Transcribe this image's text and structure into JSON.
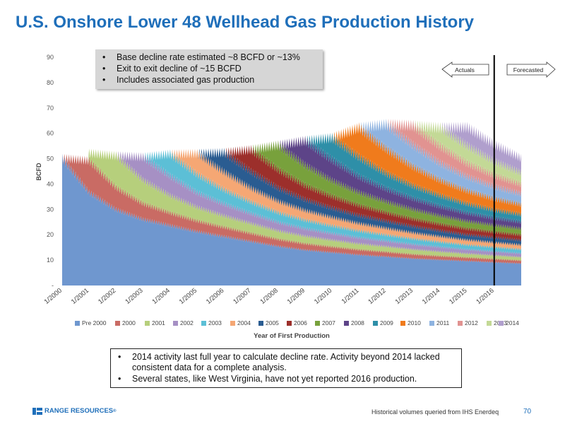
{
  "slide": {
    "title": "U.S. Onshore Lower 48 Wellhead Gas Production History",
    "bullets_top": [
      "Base decline rate estimated ~8 BCFD or ~13%",
      "Exit to exit decline of ~15 BCFD",
      "Includes associated gas production"
    ],
    "bullets_bottom": [
      "2014 activity last full year to calculate decline rate. Activity beyond 2014 lacked consistent data for a complete analysis.",
      "Several states, like West Virginia, have not yet reported 2016 production."
    ],
    "footer_note": "Historical volumes queried from IHS Enerdeq",
    "page_number": "70",
    "logo_text": "RANGE RESOURCES"
  },
  "chart_data": {
    "type": "area",
    "stacked": true,
    "title": "",
    "xlabel": "Year of First Production",
    "ylabel": "BCFD",
    "ylim": [
      0,
      90
    ],
    "yticks": [
      "-",
      "10",
      "20",
      "30",
      "40",
      "50",
      "60",
      "70",
      "80",
      "90"
    ],
    "x_tick_labels": [
      "1/2000",
      "1/2001",
      "1/2002",
      "1/2003",
      "1/2004",
      "1/2005",
      "1/2006",
      "1/2007",
      "1/2008",
      "1/2009",
      "1/2010",
      "1/2011",
      "1/2012",
      "1/2013",
      "1/2014",
      "1/2015",
      "1/2016"
    ],
    "x_start": 2000.0,
    "x_end": 2017.0,
    "actuals_end": 2016.0,
    "annotations": {
      "left_arrow": "Actuals",
      "right_arrow": "Forecasted"
    },
    "grid": false,
    "legend_position": "bottom",
    "series": [
      {
        "name": "Pre 2000",
        "color": "#6f97cf",
        "start": 2000.0,
        "values": [
          [
            2000.0,
            52
          ],
          [
            2001.0,
            38
          ],
          [
            2002.0,
            31
          ],
          [
            2003.0,
            27
          ],
          [
            2004.0,
            24.5
          ],
          [
            2005.0,
            22
          ],
          [
            2006.0,
            20
          ],
          [
            2007.0,
            18
          ],
          [
            2008.0,
            16
          ],
          [
            2009.0,
            14.5
          ],
          [
            2010.0,
            13.5
          ],
          [
            2011.0,
            12.5
          ],
          [
            2012.0,
            11.8
          ],
          [
            2013.0,
            11
          ],
          [
            2014.0,
            10.5
          ],
          [
            2015.0,
            10
          ],
          [
            2016.0,
            9.5
          ],
          [
            2017.0,
            9
          ]
        ]
      },
      {
        "name": "2000",
        "color": "#c96b64",
        "start": 2000.0,
        "values": [
          [
            2000.0,
            0
          ],
          [
            2001.0,
            13
          ],
          [
            2002.0,
            9
          ],
          [
            2003.0,
            6.5
          ],
          [
            2004.0,
            5.2
          ],
          [
            2005.0,
            4.4
          ],
          [
            2006.0,
            3.8
          ],
          [
            2007.0,
            3.3
          ],
          [
            2008.0,
            2.9
          ],
          [
            2009.0,
            2.6
          ],
          [
            2010.0,
            2.3
          ],
          [
            2011.0,
            2.1
          ],
          [
            2012.0,
            1.9
          ],
          [
            2013.0,
            1.7
          ],
          [
            2014.0,
            1.5
          ],
          [
            2015.0,
            1.4
          ],
          [
            2016.0,
            1.3
          ],
          [
            2017.0,
            1.2
          ]
        ]
      },
      {
        "name": "2001",
        "color": "#b6cf7c",
        "start": 2001.0,
        "values": [
          [
            2001.0,
            3
          ],
          [
            2002.0,
            13
          ],
          [
            2003.0,
            9.5
          ],
          [
            2004.0,
            7
          ],
          [
            2005.0,
            5.5
          ],
          [
            2006.0,
            4.6
          ],
          [
            2007.0,
            4
          ],
          [
            2008.0,
            3.4
          ],
          [
            2009.0,
            3
          ],
          [
            2010.0,
            2.7
          ],
          [
            2011.0,
            2.4
          ],
          [
            2012.0,
            2.2
          ],
          [
            2013.0,
            2
          ],
          [
            2014.0,
            1.8
          ],
          [
            2015.0,
            1.6
          ],
          [
            2016.0,
            1.5
          ],
          [
            2017.0,
            1.4
          ]
        ]
      },
      {
        "name": "2002",
        "color": "#a690c4",
        "start": 2002.0,
        "values": [
          [
            2002.0,
            0
          ],
          [
            2003.0,
            9.5
          ],
          [
            2004.0,
            8
          ],
          [
            2005.0,
            6
          ],
          [
            2006.0,
            4.9
          ],
          [
            2007.0,
            4.1
          ],
          [
            2008.0,
            3.5
          ],
          [
            2009.0,
            3.1
          ],
          [
            2010.0,
            2.8
          ],
          [
            2011.0,
            2.5
          ],
          [
            2012.0,
            2.3
          ],
          [
            2013.0,
            2.1
          ],
          [
            2014.0,
            1.9
          ],
          [
            2015.0,
            1.7
          ],
          [
            2016.0,
            1.6
          ],
          [
            2017.0,
            1.5
          ]
        ]
      },
      {
        "name": "2003",
        "color": "#5cbfd6",
        "start": 2003.0,
        "values": [
          [
            2003.0,
            0
          ],
          [
            2004.0,
            9
          ],
          [
            2005.0,
            7.5
          ],
          [
            2006.0,
            5.8
          ],
          [
            2007.0,
            4.7
          ],
          [
            2008.0,
            4
          ],
          [
            2009.0,
            3.5
          ],
          [
            2010.0,
            3.1
          ],
          [
            2011.0,
            2.8
          ],
          [
            2012.0,
            2.5
          ],
          [
            2013.0,
            2.3
          ],
          [
            2014.0,
            2.1
          ],
          [
            2015.0,
            1.9
          ],
          [
            2016.0,
            1.8
          ],
          [
            2017.0,
            1.7
          ]
        ]
      },
      {
        "name": "2004",
        "color": "#f5a774",
        "start": 2004.0,
        "values": [
          [
            2004.0,
            0
          ],
          [
            2005.0,
            8.5
          ],
          [
            2006.0,
            7.2
          ],
          [
            2007.0,
            5.6
          ],
          [
            2008.0,
            4.6
          ],
          [
            2009.0,
            3.9
          ],
          [
            2010.0,
            3.4
          ],
          [
            2011.0,
            3
          ],
          [
            2012.0,
            2.7
          ],
          [
            2013.0,
            2.4
          ],
          [
            2014.0,
            2.2
          ],
          [
            2015.0,
            2
          ],
          [
            2016.0,
            1.9
          ],
          [
            2017.0,
            1.8
          ]
        ]
      },
      {
        "name": "2005",
        "color": "#2a5c91",
        "start": 2005.0,
        "values": [
          [
            2005.0,
            0
          ],
          [
            2006.0,
            8
          ],
          [
            2007.0,
            6.8
          ],
          [
            2008.0,
            5.4
          ],
          [
            2009.0,
            4.5
          ],
          [
            2010.0,
            3.8
          ],
          [
            2011.0,
            3.3
          ],
          [
            2012.0,
            2.9
          ],
          [
            2013.0,
            2.6
          ],
          [
            2014.0,
            2.3
          ],
          [
            2015.0,
            2.1
          ],
          [
            2016.0,
            2
          ],
          [
            2017.0,
            1.9
          ]
        ]
      },
      {
        "name": "2006",
        "color": "#9c2f2b",
        "start": 2006.0,
        "values": [
          [
            2006.0,
            0
          ],
          [
            2007.0,
            9
          ],
          [
            2008.0,
            7.5
          ],
          [
            2009.0,
            5.8
          ],
          [
            2010.0,
            4.8
          ],
          [
            2011.0,
            4.1
          ],
          [
            2012.0,
            3.5
          ],
          [
            2013.0,
            3.1
          ],
          [
            2014.0,
            2.8
          ],
          [
            2015.0,
            2.5
          ],
          [
            2016.0,
            2.3
          ],
          [
            2017.0,
            2.2
          ]
        ]
      },
      {
        "name": "2007",
        "color": "#78a13c",
        "start": 2007.0,
        "values": [
          [
            2007.0,
            0
          ],
          [
            2008.0,
            10
          ],
          [
            2009.0,
            8.2
          ],
          [
            2010.0,
            6.4
          ],
          [
            2011.0,
            5.2
          ],
          [
            2012.0,
            4.4
          ],
          [
            2013.0,
            3.8
          ],
          [
            2014.0,
            3.3
          ],
          [
            2015.0,
            3
          ],
          [
            2016.0,
            2.7
          ],
          [
            2017.0,
            2.5
          ]
        ]
      },
      {
        "name": "2008",
        "color": "#5d4488",
        "start": 2008.0,
        "values": [
          [
            2008.0,
            0
          ],
          [
            2009.0,
            10
          ],
          [
            2010.0,
            8.5
          ],
          [
            2011.0,
            6.5
          ],
          [
            2012.0,
            5.3
          ],
          [
            2013.0,
            4.5
          ],
          [
            2014.0,
            3.9
          ],
          [
            2015.0,
            3.4
          ],
          [
            2016.0,
            3
          ],
          [
            2017.0,
            2.8
          ]
        ]
      },
      {
        "name": "2009",
        "color": "#2e8fa8",
        "start": 2009.0,
        "values": [
          [
            2009.0,
            0
          ],
          [
            2010.0,
            9
          ],
          [
            2011.0,
            8
          ],
          [
            2012.0,
            6.3
          ],
          [
            2013.0,
            5.2
          ],
          [
            2014.0,
            4.4
          ],
          [
            2015.0,
            3.8
          ],
          [
            2016.0,
            3.3
          ],
          [
            2017.0,
            3
          ]
        ]
      },
      {
        "name": "2010",
        "color": "#f07b1c",
        "start": 2010.0,
        "values": [
          [
            2010.0,
            0
          ],
          [
            2011.0,
            12
          ],
          [
            2012.0,
            10
          ],
          [
            2013.0,
            7.8
          ],
          [
            2014.0,
            6.3
          ],
          [
            2015.0,
            5.3
          ],
          [
            2016.0,
            4.6
          ],
          [
            2017.0,
            4.1
          ]
        ]
      },
      {
        "name": "2011",
        "color": "#8eb3e0",
        "start": 2011.0,
        "values": [
          [
            2011.0,
            0
          ],
          [
            2012.0,
            10
          ],
          [
            2013.0,
            8.8
          ],
          [
            2014.0,
            6.9
          ],
          [
            2015.0,
            5.7
          ],
          [
            2016.0,
            4.9
          ],
          [
            2017.0,
            4.3
          ]
        ]
      },
      {
        "name": "2012",
        "color": "#e19391",
        "start": 2012.0,
        "values": [
          [
            2012.0,
            0
          ],
          [
            2013.0,
            8
          ],
          [
            2014.0,
            7
          ],
          [
            2015.0,
            5.6
          ],
          [
            2016.0,
            4.7
          ],
          [
            2017.0,
            4
          ]
        ]
      },
      {
        "name": "2013",
        "color": "#c3d996",
        "start": 2013.0,
        "values": [
          [
            2013.0,
            0
          ],
          [
            2014.0,
            7.5
          ],
          [
            2015.0,
            7
          ],
          [
            2016.0,
            5.6
          ],
          [
            2017.0,
            4.6
          ]
        ]
      },
      {
        "name": "2014",
        "color": "#b09fcd",
        "start": 2014.0,
        "values": [
          [
            2014.0,
            0
          ],
          [
            2015.0,
            7.6
          ],
          [
            2016.0,
            7
          ],
          [
            2017.0,
            6
          ]
        ]
      }
    ]
  }
}
